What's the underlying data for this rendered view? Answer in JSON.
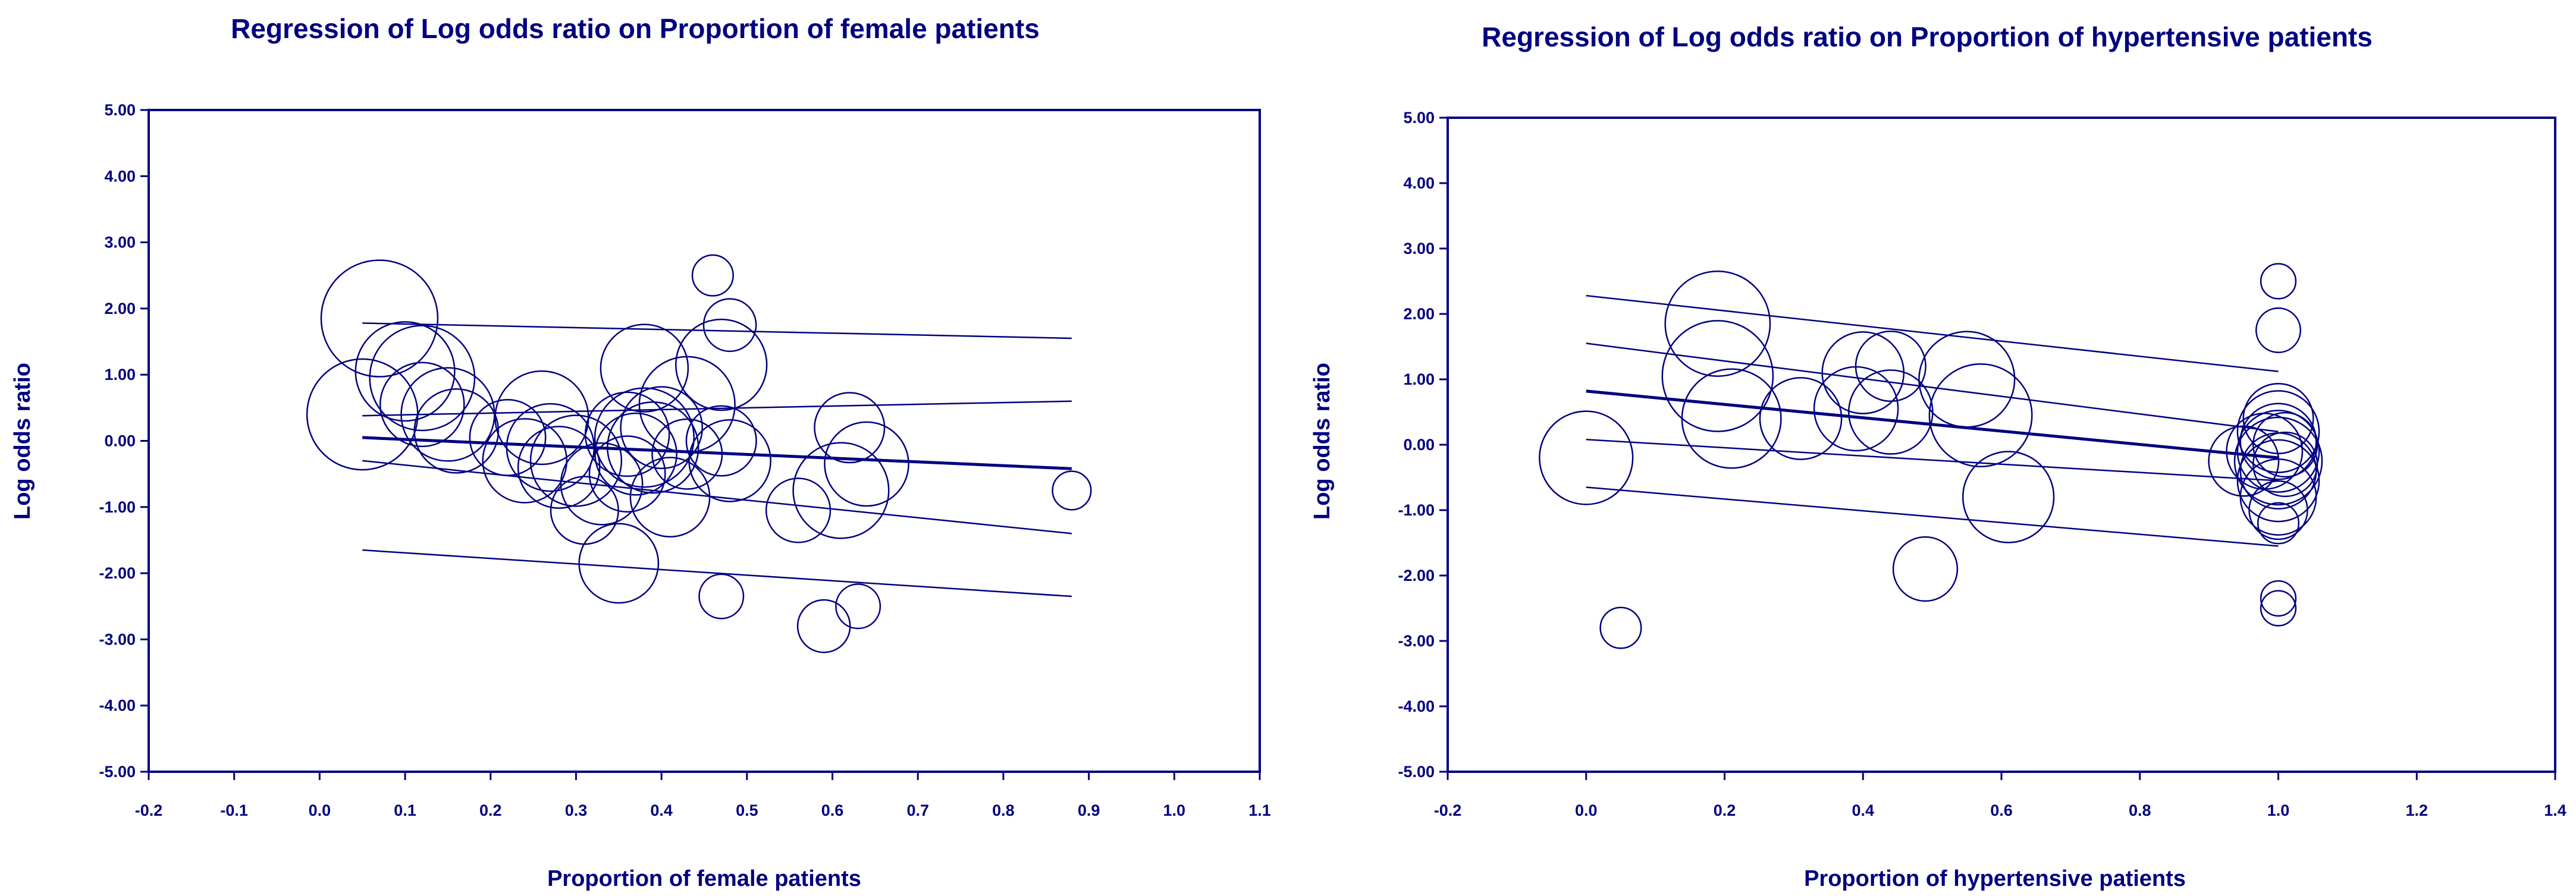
{
  "colors": {
    "ink": "#000080",
    "background": "#ffffff"
  },
  "chart_data": [
    {
      "type": "scatter",
      "title": "Regression of Log odds ratio on Proportion of female patients",
      "xlabel": "Proportion of female patients",
      "ylabel": "Log odds ratio",
      "xlim": [
        -0.2,
        1.1
      ],
      "ylim": [
        -5,
        5
      ],
      "xticks": [
        -0.2,
        -0.1,
        0.0,
        0.1,
        0.2,
        0.3,
        0.4,
        0.5,
        0.6,
        0.7,
        0.8,
        0.9,
        1.0,
        1.1
      ],
      "xtick_labels": [
        "-0.2",
        "-0.1",
        "0.0",
        "0.1",
        "0.2",
        "0.3",
        "0.4",
        "0.5",
        "0.6",
        "0.7",
        "0.8",
        "0.9",
        "1.0",
        "1.1"
      ],
      "yticks": [
        5,
        4,
        3,
        2,
        1,
        0,
        -1,
        -2,
        -3,
        -4,
        -5
      ],
      "ytick_labels": [
        "5.00",
        "4.00",
        "3.00",
        "2.00",
        "1.00",
        "0.00",
        "-1.00",
        "-2.00",
        "-3.00",
        "-4.00",
        "-5.00"
      ],
      "grid": false,
      "points_note": "bubble size reflects study weight",
      "points": [
        {
          "x": 0.07,
          "y": 1.85,
          "w": 1.0
        },
        {
          "x": 0.05,
          "y": 0.4,
          "w": 0.95
        },
        {
          "x": 0.1,
          "y": 1.05,
          "w": 0.85
        },
        {
          "x": 0.12,
          "y": 0.95,
          "w": 0.9
        },
        {
          "x": 0.12,
          "y": 0.55,
          "w": 0.72
        },
        {
          "x": 0.15,
          "y": 0.4,
          "w": 0.8
        },
        {
          "x": 0.16,
          "y": 0.15,
          "w": 0.72
        },
        {
          "x": 0.22,
          "y": 0.05,
          "w": 0.65
        },
        {
          "x": 0.24,
          "y": -0.3,
          "w": 0.72
        },
        {
          "x": 0.26,
          "y": 0.35,
          "w": 0.8
        },
        {
          "x": 0.27,
          "y": -0.1,
          "w": 0.75
        },
        {
          "x": 0.28,
          "y": -0.4,
          "w": 0.7
        },
        {
          "x": 0.3,
          "y": -0.3,
          "w": 0.78
        },
        {
          "x": 0.31,
          "y": -1.05,
          "w": 0.58
        },
        {
          "x": 0.33,
          "y": -0.65,
          "w": 0.7
        },
        {
          "x": 0.35,
          "y": -1.85,
          "w": 0.68
        },
        {
          "x": 0.36,
          "y": 0.1,
          "w": 0.72
        },
        {
          "x": 0.36,
          "y": -0.5,
          "w": 0.65
        },
        {
          "x": 0.37,
          "y": -0.2,
          "w": 0.7
        },
        {
          "x": 0.38,
          "y": 1.1,
          "w": 0.75
        },
        {
          "x": 0.38,
          "y": 0.05,
          "w": 0.85
        },
        {
          "x": 0.39,
          "y": -0.1,
          "w": 0.78
        },
        {
          "x": 0.4,
          "y": 0.2,
          "w": 0.7
        },
        {
          "x": 0.41,
          "y": -0.85,
          "w": 0.68
        },
        {
          "x": 0.43,
          "y": 0.55,
          "w": 0.82
        },
        {
          "x": 0.43,
          "y": -0.2,
          "w": 0.6
        },
        {
          "x": 0.46,
          "y": 2.5,
          "w": 0.35
        },
        {
          "x": 0.47,
          "y": 1.15,
          "w": 0.78
        },
        {
          "x": 0.47,
          "y": -2.35,
          "w": 0.38
        },
        {
          "x": 0.48,
          "y": 1.75,
          "w": 0.45
        },
        {
          "x": 0.47,
          "y": 0.0,
          "w": 0.6
        },
        {
          "x": 0.48,
          "y": -0.3,
          "w": 0.7
        },
        {
          "x": 0.56,
          "y": -1.05,
          "w": 0.55
        },
        {
          "x": 0.59,
          "y": -2.8,
          "w": 0.45
        },
        {
          "x": 0.61,
          "y": -0.75,
          "w": 0.82
        },
        {
          "x": 0.62,
          "y": 0.2,
          "w": 0.6
        },
        {
          "x": 0.63,
          "y": -2.5,
          "w": 0.38
        },
        {
          "x": 0.64,
          "y": -0.35,
          "w": 0.72
        },
        {
          "x": 0.88,
          "y": -0.75,
          "w": 0.33
        }
      ],
      "regression": {
        "x": [
          0.05,
          0.88
        ],
        "y": [
          0.05,
          -0.42
        ]
      },
      "bands": [
        {
          "x": [
            0.05,
            0.88
          ],
          "y": [
            1.78,
            1.55
          ]
        },
        {
          "x": [
            0.05,
            0.88
          ],
          "y": [
            0.38,
            0.6
          ]
        },
        {
          "x": [
            0.05,
            0.88
          ],
          "y": [
            -0.3,
            -1.4
          ]
        },
        {
          "x": [
            0.05,
            0.88
          ],
          "y": [
            -1.65,
            -2.35
          ]
        }
      ]
    },
    {
      "type": "scatter",
      "title": "Regression of Log odds ratio on Proportion of hypertensive patients",
      "xlabel": "Proportion of hypertensive patients",
      "ylabel": "Log odds ratio",
      "xlim": [
        -0.2,
        1.4
      ],
      "ylim": [
        -5,
        5
      ],
      "xticks": [
        -0.2,
        0.0,
        0.2,
        0.4,
        0.6,
        0.8,
        1.0,
        1.2,
        1.4
      ],
      "xtick_labels": [
        "-0.2",
        "0.0",
        "0.2",
        "0.4",
        "0.6",
        "0.8",
        "1.0",
        "1.2",
        "1.4"
      ],
      "yticks": [
        5,
        4,
        3,
        2,
        1,
        0,
        -1,
        -2,
        -3,
        -4,
        -5
      ],
      "ytick_labels": [
        "5.00",
        "4.00",
        "3.00",
        "2.00",
        "1.00",
        "0.00",
        "-1.00",
        "-2.00",
        "-3.00",
        "-4.00",
        "-5.00"
      ],
      "grid": false,
      "points_note": "bubble size reflects study weight",
      "points": [
        {
          "x": 0.0,
          "y": -0.2,
          "w": 0.8
        },
        {
          "x": 0.05,
          "y": -2.8,
          "w": 0.35
        },
        {
          "x": 0.19,
          "y": 1.85,
          "w": 0.9
        },
        {
          "x": 0.19,
          "y": 1.05,
          "w": 0.95
        },
        {
          "x": 0.21,
          "y": 0.4,
          "w": 0.85
        },
        {
          "x": 0.31,
          "y": 0.4,
          "w": 0.7
        },
        {
          "x": 0.39,
          "y": 0.55,
          "w": 0.72
        },
        {
          "x": 0.4,
          "y": 1.1,
          "w": 0.7
        },
        {
          "x": 0.44,
          "y": 1.2,
          "w": 0.6
        },
        {
          "x": 0.44,
          "y": 0.5,
          "w": 0.72
        },
        {
          "x": 0.49,
          "y": -1.9,
          "w": 0.55
        },
        {
          "x": 0.55,
          "y": 1.0,
          "w": 0.82
        },
        {
          "x": 0.57,
          "y": 0.45,
          "w": 0.88
        },
        {
          "x": 0.61,
          "y": -0.8,
          "w": 0.78
        },
        {
          "x": 0.95,
          "y": -0.25,
          "w": 0.6
        },
        {
          "x": 0.98,
          "y": -0.1,
          "w": 0.65
        },
        {
          "x": 1.0,
          "y": 2.5,
          "w": 0.3
        },
        {
          "x": 1.0,
          "y": 1.75,
          "w": 0.38
        },
        {
          "x": 1.0,
          "y": 0.4,
          "w": 0.6
        },
        {
          "x": 1.0,
          "y": 0.2,
          "w": 0.7
        },
        {
          "x": 1.0,
          "y": 0.05,
          "w": 0.65
        },
        {
          "x": 1.0,
          "y": -0.1,
          "w": 0.7
        },
        {
          "x": 1.0,
          "y": -0.25,
          "w": 0.75
        },
        {
          "x": 1.0,
          "y": -0.4,
          "w": 0.65
        },
        {
          "x": 1.0,
          "y": -0.55,
          "w": 0.7
        },
        {
          "x": 1.0,
          "y": -0.8,
          "w": 0.65
        },
        {
          "x": 1.0,
          "y": -1.0,
          "w": 0.5
        },
        {
          "x": 1.0,
          "y": -1.2,
          "w": 0.35
        },
        {
          "x": 1.0,
          "y": -2.35,
          "w": 0.3
        },
        {
          "x": 1.0,
          "y": -2.5,
          "w": 0.3
        },
        {
          "x": 1.01,
          "y": 0.0,
          "w": 0.55
        },
        {
          "x": 1.01,
          "y": -0.3,
          "w": 0.55
        }
      ],
      "regression": {
        "x": [
          0.0,
          1.0
        ],
        "y": [
          0.82,
          -0.2
        ]
      },
      "bands": [
        {
          "x": [
            0.0,
            1.0
          ],
          "y": [
            2.28,
            1.12
          ]
        },
        {
          "x": [
            0.0,
            1.0
          ],
          "y": [
            1.55,
            0.2
          ]
        },
        {
          "x": [
            0.0,
            1.0
          ],
          "y": [
            0.08,
            -0.55
          ]
        },
        {
          "x": [
            0.0,
            1.0
          ],
          "y": [
            -0.65,
            -1.55
          ]
        }
      ]
    }
  ]
}
